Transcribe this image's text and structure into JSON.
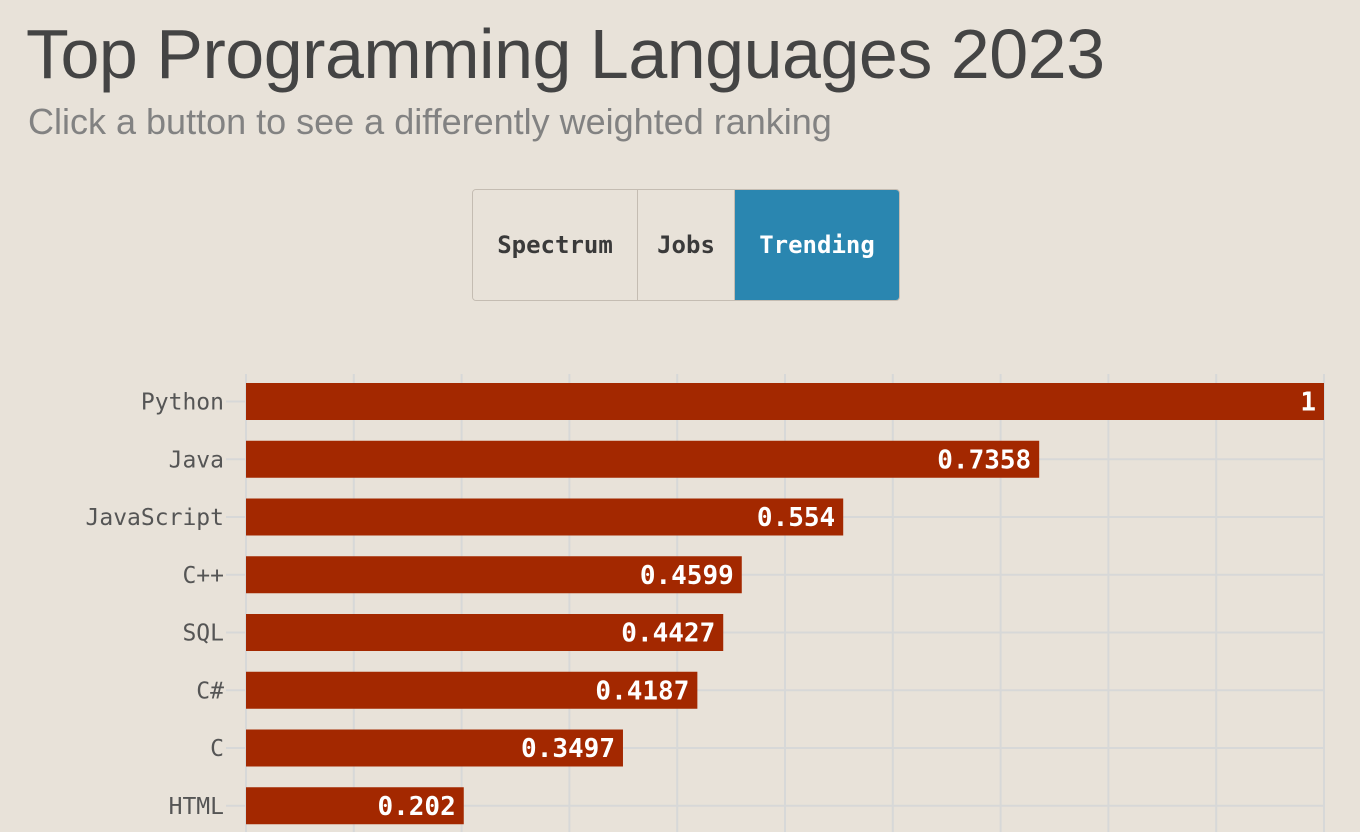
{
  "header": {
    "title": "Top Programming Languages 2023",
    "subtitle": "Click a button to see a differently weighted ranking"
  },
  "ranking_buttons": [
    {
      "label": "Spectrum",
      "active": false
    },
    {
      "label": "Jobs",
      "active": false
    },
    {
      "label": "Trending",
      "active": true
    }
  ],
  "colors": {
    "background": "#e8e2d9",
    "bar": "#a32800",
    "active_button": "#2a86b0",
    "gridline": "#d7d8d8"
  },
  "chart_data": {
    "type": "bar",
    "orientation": "horizontal",
    "categories": [
      "Python",
      "Java",
      "JavaScript",
      "C++",
      "SQL",
      "C#",
      "C",
      "HTML"
    ],
    "values": [
      1,
      0.7358,
      0.554,
      0.4599,
      0.4427,
      0.4187,
      0.3497,
      0.202
    ],
    "value_labels": [
      "1",
      "0.7358",
      "0.554",
      "0.4599",
      "0.4427",
      "0.4187",
      "0.3497",
      "0.202"
    ],
    "xlim": [
      0,
      1
    ],
    "grid": true
  }
}
